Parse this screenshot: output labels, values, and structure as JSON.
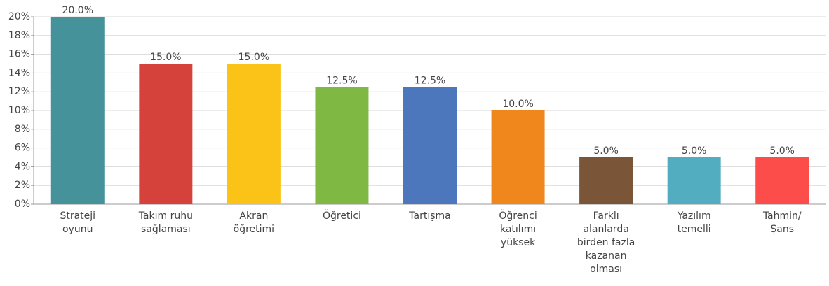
{
  "chart_data": {
    "type": "bar",
    "categories": [
      "Strateji oyunu",
      "Takım ruhu sağlaması",
      "Akran öğretimi",
      "Öğretici",
      "Tartışma",
      "Öğrenci katılımı yüksek",
      "Farklı alanlarda birden fazla kazanan olması",
      "Yazılım temelli",
      "Tahmin/ Şans"
    ],
    "values": [
      20,
      15,
      15,
      12.5,
      12.5,
      10,
      5,
      5,
      5
    ],
    "value_labels": [
      "20.0%",
      "15.0%",
      "15.0%",
      "12.5%",
      "12.5%",
      "10.0%",
      "5.0%",
      "5.0%",
      "5.0%"
    ],
    "colors": [
      "#45929b",
      "#d5413b",
      "#fbc318",
      "#7fb843",
      "#4c77bd",
      "#f0871d",
      "#7b5537",
      "#53adc0",
      "#fd4d4a"
    ],
    "ylim": [
      0,
      20
    ],
    "yticks": [
      {
        "value": 0,
        "label": "0%"
      },
      {
        "value": 2,
        "label": "2%"
      },
      {
        "value": 4,
        "label": "4%"
      },
      {
        "value": 6,
        "label": "6%"
      },
      {
        "value": 8,
        "label": "8%"
      },
      {
        "value": 10,
        "label": "10%"
      },
      {
        "value": 12,
        "label": "12%"
      },
      {
        "value": 14,
        "label": "14%"
      },
      {
        "value": 16,
        "label": "16%"
      },
      {
        "value": 18,
        "label": "18%"
      },
      {
        "value": 20,
        "label": "20%"
      }
    ],
    "grid": true
  }
}
